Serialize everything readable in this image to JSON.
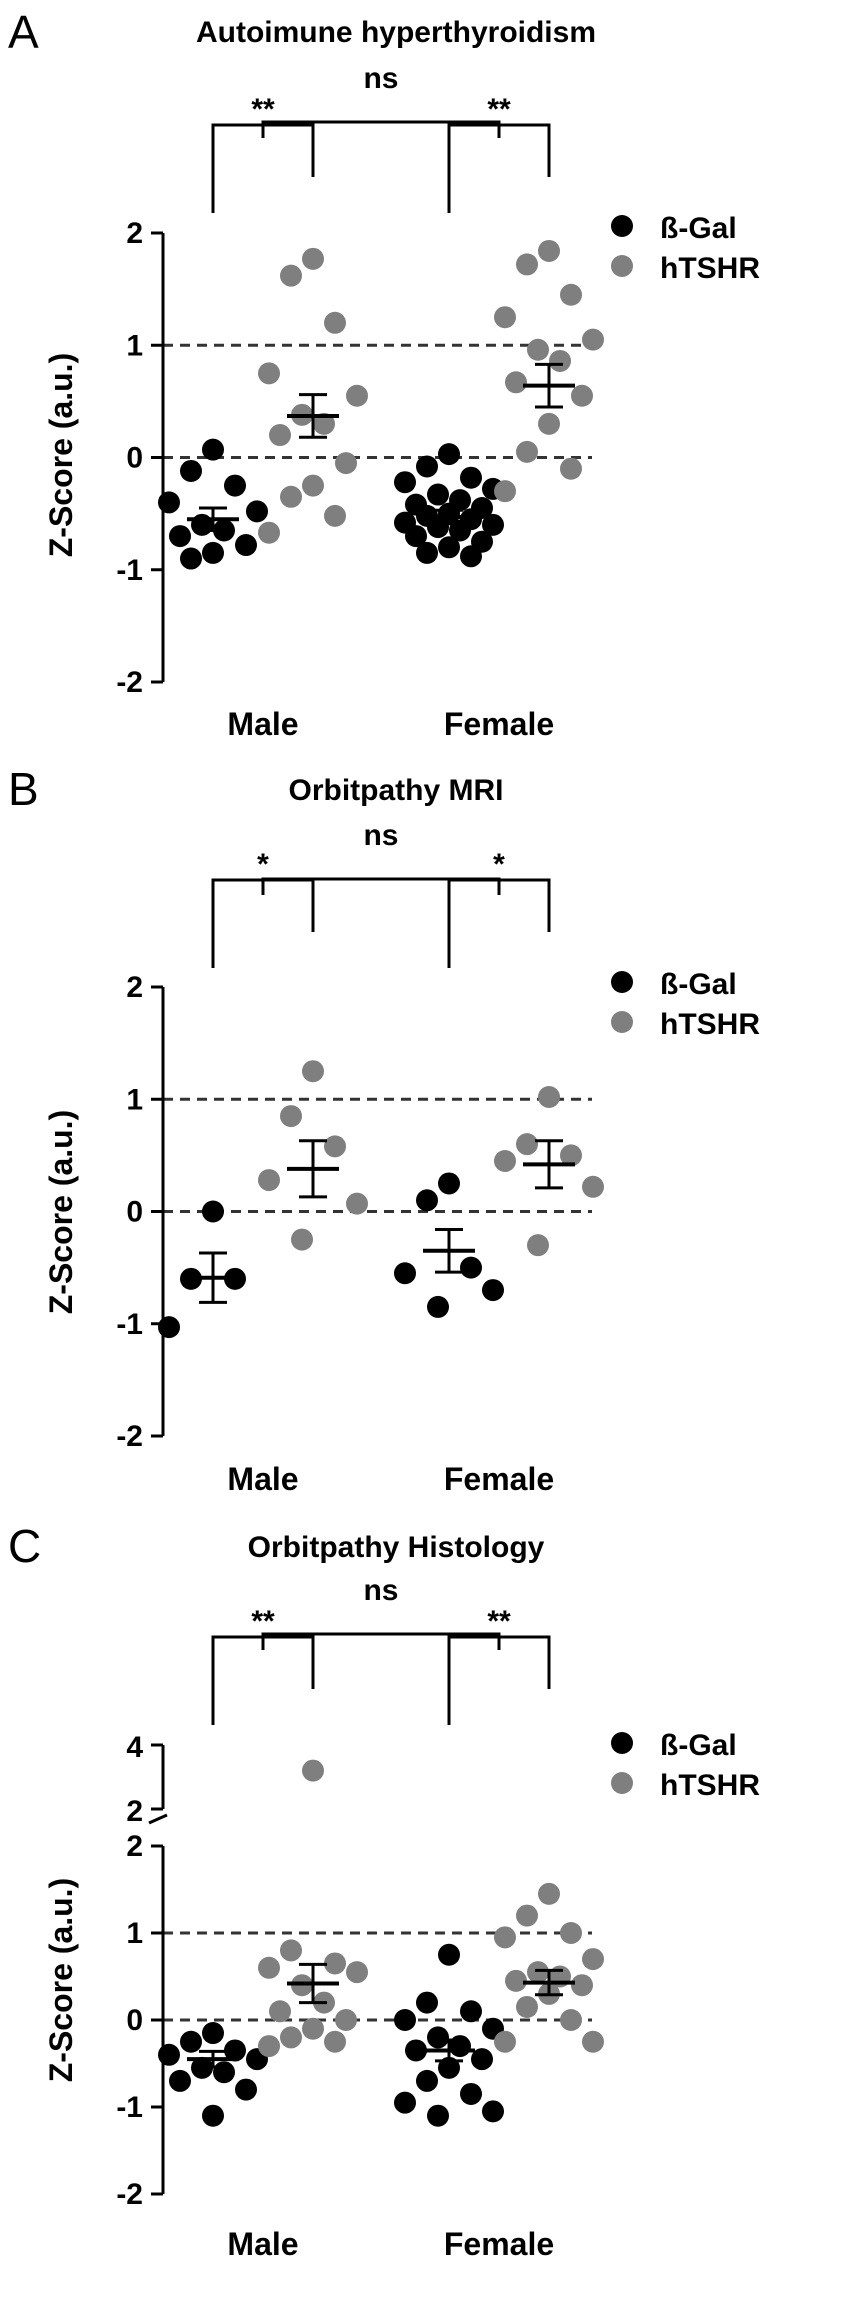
{
  "colors": {
    "b_gal": "#000000",
    "htshr": "#7f7f7f",
    "axis": "#000000"
  },
  "chart_data": [
    {
      "panel": "A",
      "type": "scatter",
      "title": "Autoimune hyperthyroidism",
      "ylabel": "Z-Score (a.u.)",
      "ylim": [
        -2,
        2
      ],
      "yticks": [
        "-2",
        "-1",
        "0",
        "1",
        "2"
      ],
      "categories": [
        "Male",
        "Female"
      ],
      "reference_lines": [
        0,
        1
      ],
      "legend": {
        "position": "top-right",
        "entries": [
          "ß-Gal",
          "hTSHR"
        ]
      },
      "series": [
        {
          "name": "ß-Gal",
          "points": [
            {
              "x": "Male",
              "values": [
                0.07,
                -0.12,
                -0.25,
                -0.4,
                -0.48,
                -0.6,
                -0.65,
                -0.7,
                -0.78,
                -0.85,
                -0.9
              ]
            },
            {
              "x": "Female",
              "values": [
                0.03,
                -0.08,
                -0.18,
                -0.22,
                -0.28,
                -0.33,
                -0.38,
                -0.42,
                -0.45,
                -0.5,
                -0.52,
                -0.55,
                -0.58,
                -0.6,
                -0.62,
                -0.65,
                -0.7,
                -0.75,
                -0.8,
                -0.85,
                -0.88
              ]
            }
          ],
          "mean": {
            "Male": -0.55,
            "Female": -0.53
          },
          "sem": {
            "Male": 0.1,
            "Female": 0.06
          }
        },
        {
          "name": "hTSHR",
          "points": [
            {
              "x": "Male",
              "values": [
                1.77,
                1.62,
                1.2,
                0.75,
                0.55,
                0.38,
                0.3,
                0.2,
                -0.05,
                -0.25,
                -0.35,
                -0.52,
                -0.67
              ]
            },
            {
              "x": "Female",
              "values": [
                1.84,
                1.72,
                1.45,
                1.25,
                1.05,
                0.96,
                0.86,
                0.67,
                0.55,
                0.3,
                0.05,
                -0.1,
                -0.3
              ]
            }
          ],
          "mean": {
            "Male": 0.37,
            "Female": 0.64
          },
          "sem": {
            "Male": 0.19,
            "Female": 0.19
          }
        }
      ],
      "significance": [
        {
          "between": "Male",
          "label": "**"
        },
        {
          "between": "Female",
          "label": "**"
        },
        {
          "between": "Male-Female",
          "label": "ns"
        }
      ]
    },
    {
      "panel": "B",
      "type": "scatter",
      "title": "Orbitpathy MRI",
      "ylabel": "Z-Score (a.u.)",
      "ylim": [
        -2,
        2
      ],
      "yticks": [
        "-2",
        "-1",
        "0",
        "1",
        "2"
      ],
      "categories": [
        "Male",
        "Female"
      ],
      "reference_lines": [
        0,
        1
      ],
      "legend": {
        "position": "top-right",
        "entries": [
          "ß-Gal",
          "hTSHR"
        ]
      },
      "series": [
        {
          "name": "ß-Gal",
          "points": [
            {
              "x": "Male",
              "values": [
                0.0,
                -0.6,
                -0.6,
                -1.03
              ]
            },
            {
              "x": "Female",
              "values": [
                0.25,
                0.1,
                -0.5,
                -0.55,
                -0.7,
                -0.85
              ]
            }
          ],
          "mean": {
            "Male": -0.59,
            "Female": -0.35
          },
          "sem": {
            "Male": 0.22,
            "Female": 0.19
          }
        },
        {
          "name": "hTSHR",
          "points": [
            {
              "x": "Male",
              "values": [
                1.25,
                0.85,
                0.58,
                0.28,
                0.07,
                -0.25
              ]
            },
            {
              "x": "Female",
              "values": [
                1.02,
                0.6,
                0.5,
                0.45,
                0.22,
                -0.3
              ]
            }
          ],
          "mean": {
            "Male": 0.38,
            "Female": 0.42
          },
          "sem": {
            "Male": 0.25,
            "Female": 0.21
          }
        }
      ],
      "significance": [
        {
          "between": "Male",
          "label": "*"
        },
        {
          "between": "Female",
          "label": "*"
        },
        {
          "between": "Male-Female",
          "label": "ns"
        }
      ]
    },
    {
      "panel": "C",
      "type": "scatter",
      "title": "Orbitpathy Histology",
      "ylabel": "Z-Score (a.u.)",
      "ylim": [
        -2,
        4
      ],
      "axis_break": [
        2,
        2
      ],
      "yticks": [
        "-2",
        "-1",
        "0",
        "1",
        "2",
        "2",
        "4"
      ],
      "categories": [
        "Male",
        "Female"
      ],
      "reference_lines": [
        0,
        1
      ],
      "legend": {
        "position": "top-right",
        "entries": [
          "ß-Gal",
          "hTSHR"
        ]
      },
      "series": [
        {
          "name": "ß-Gal",
          "points": [
            {
              "x": "Male",
              "values": [
                -0.15,
                -0.25,
                -0.35,
                -0.4,
                -0.45,
                -0.55,
                -0.6,
                -0.7,
                -0.8,
                -1.1
              ]
            },
            {
              "x": "Female",
              "values": [
                0.75,
                0.2,
                0.1,
                0.0,
                -0.1,
                -0.2,
                -0.3,
                -0.35,
                -0.45,
                -0.55,
                -0.7,
                -0.85,
                -0.95,
                -1.05,
                -1.1
              ]
            }
          ],
          "mean": {
            "Male": -0.45,
            "Female": -0.35
          },
          "sem": {
            "Male": 0.09,
            "Female": 0.12
          }
        },
        {
          "name": "hTSHR",
          "points": [
            {
              "x": "Male",
              "values": [
                3.2,
                0.8,
                0.65,
                0.6,
                0.55,
                0.4,
                0.2,
                0.1,
                0.0,
                -0.1,
                -0.2,
                -0.25,
                -0.3
              ]
            },
            {
              "x": "Female",
              "values": [
                1.45,
                1.2,
                1.0,
                0.95,
                0.7,
                0.55,
                0.5,
                0.45,
                0.4,
                0.3,
                0.15,
                0.0,
                -0.25,
                -0.25
              ]
            }
          ],
          "mean": {
            "Male": 0.42,
            "Female": 0.43
          },
          "sem": {
            "Male": 0.22,
            "Female": 0.14
          }
        }
      ],
      "significance": [
        {
          "between": "Male",
          "label": "**"
        },
        {
          "between": "Female",
          "label": "**"
        },
        {
          "between": "Male-Female",
          "label": "ns"
        }
      ]
    }
  ]
}
